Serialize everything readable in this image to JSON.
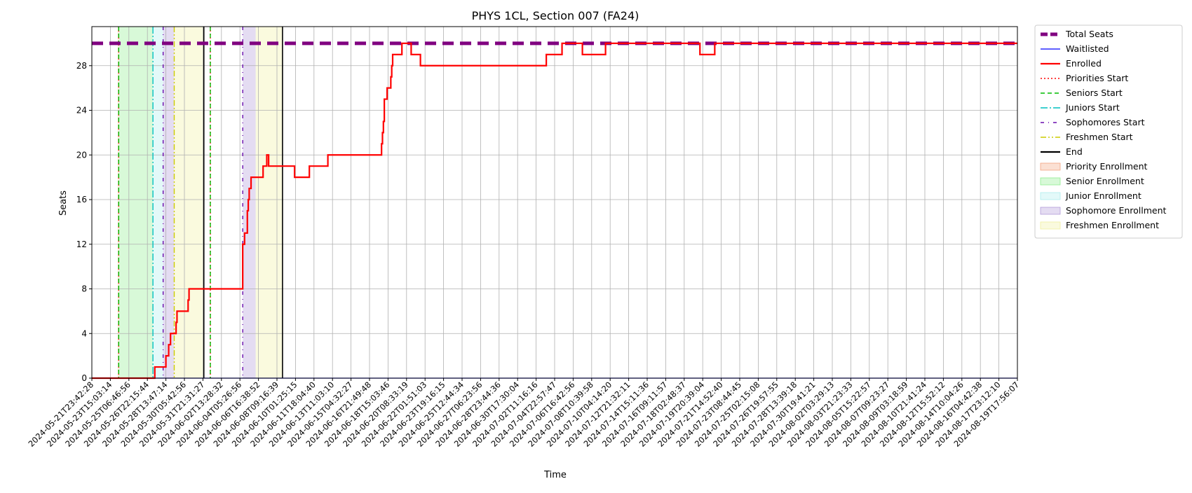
{
  "chart_data": {
    "type": "line",
    "title": "PHYS 1CL, Section 007 (FA24)",
    "xlabel": "Time",
    "ylabel": "Seats",
    "ylim": [
      0,
      31.5
    ],
    "yticks": [
      0,
      4,
      8,
      12,
      16,
      20,
      24,
      28
    ],
    "grid": true,
    "legend_position": "outside-right",
    "x_tick_labels": [
      "2024-05-21T23:42:28",
      "2024-05-23T15:03:14",
      "2024-05-25T06:46:56",
      "2024-05-26T22:15:44",
      "2024-05-28T13:47:14",
      "2024-05-30T05:42:56",
      "2024-05-31T21:31:27",
      "2024-06-02T13:28:32",
      "2024-06-04T05:26:56",
      "2024-06-06T16:38:52",
      "2024-06-08T09:16:39",
      "2024-06-10T01:25:15",
      "2024-06-11T18:04:40",
      "2024-06-13T11:03:10",
      "2024-06-15T04:32:27",
      "2024-06-16T21:49:48",
      "2024-06-18T15:03:46",
      "2024-06-20T08:33:19",
      "2024-06-22T01:51:03",
      "2024-06-23T19:16:15",
      "2024-06-25T12:44:34",
      "2024-06-27T06:23:56",
      "2024-06-28T23:44:36",
      "2024-06-30T17:30:04",
      "2024-07-02T11:16:16",
      "2024-07-04T22:57:47",
      "2024-07-06T16:42:56",
      "2024-07-08T10:39:58",
      "2024-07-10T04:14:20",
      "2024-07-12T21:32:11",
      "2024-07-14T15:11:36",
      "2024-07-16T09:11:57",
      "2024-07-18T02:48:37",
      "2024-07-19T20:39:04",
      "2024-07-21T14:52:40",
      "2024-07-23T08:44:45",
      "2024-07-25T02:15:08",
      "2024-07-26T19:57:55",
      "2024-07-28T13:39:18",
      "2024-07-30T19:41:21",
      "2024-08-02T03:29:13",
      "2024-08-03T21:23:33",
      "2024-08-05T15:22:57",
      "2024-08-07T09:23:27",
      "2024-08-09T03:18:59",
      "2024-08-10T21:41:24",
      "2024-08-12T15:52:12",
      "2024-08-14T10:04:26",
      "2024-08-16T04:42:38",
      "2024-08-17T23:12:10",
      "2024-08-19T17:56:07"
    ],
    "x_index_range": [
      0,
      100
    ],
    "series": [
      {
        "name": "Total Seats",
        "color": "#800080",
        "style": "dashed-thick",
        "points": [
          [
            0,
            30
          ],
          [
            100,
            30
          ]
        ]
      },
      {
        "name": "Waitlisted",
        "color": "#0000ff",
        "style": "solid-thin",
        "points": [
          [
            0,
            0
          ],
          [
            100,
            0
          ]
        ]
      },
      {
        "name": "Enrolled",
        "color": "#ff0000",
        "style": "solid",
        "steps": [
          [
            0,
            0
          ],
          [
            6.8,
            1
          ],
          [
            8,
            2
          ],
          [
            8.3,
            3
          ],
          [
            8.5,
            4
          ],
          [
            9.1,
            5
          ],
          [
            9.2,
            6
          ],
          [
            10.4,
            7
          ],
          [
            10.5,
            8
          ],
          [
            16.3,
            12
          ],
          [
            16.5,
            13
          ],
          [
            16.8,
            15
          ],
          [
            16.9,
            16
          ],
          [
            17,
            17
          ],
          [
            17.2,
            18
          ],
          [
            18.5,
            19
          ],
          [
            18.9,
            20
          ],
          [
            19.1,
            19
          ],
          [
            21.9,
            18
          ],
          [
            23.5,
            19
          ],
          [
            25.5,
            20
          ],
          [
            31.3,
            21
          ],
          [
            31.4,
            22
          ],
          [
            31.5,
            23
          ],
          [
            31.6,
            25
          ],
          [
            31.9,
            26
          ],
          [
            32.3,
            27
          ],
          [
            32.4,
            28
          ],
          [
            32.5,
            29
          ],
          [
            33.5,
            30
          ],
          [
            34.5,
            29
          ],
          [
            35.5,
            28
          ],
          [
            49.1,
            29
          ],
          [
            50.8,
            30
          ],
          [
            53,
            29
          ],
          [
            55.5,
            30
          ],
          [
            65.7,
            29
          ],
          [
            67.3,
            30
          ],
          [
            100,
            30
          ]
        ]
      }
    ],
    "vertical_markers": [
      {
        "name": "Priorities Start",
        "color": "#ff0000",
        "style": "dotted",
        "x": 2.9
      },
      {
        "name": "Priorities Start",
        "color": "#ff0000",
        "style": "dotted",
        "x": 12.8
      },
      {
        "name": "Seniors Start",
        "color": "#00bb00",
        "style": "dashed",
        "x": 2.9
      },
      {
        "name": "Seniors Start",
        "color": "#00bb00",
        "style": "dashed",
        "x": 12.8
      },
      {
        "name": "Juniors Start",
        "color": "#00bfbf",
        "style": "dashdot",
        "x": 6.6
      },
      {
        "name": "Sophomores Start",
        "color": "#6a0dad",
        "style": "dashdot-dense",
        "x": 7.7
      },
      {
        "name": "Sophomores Start",
        "color": "#6a0dad",
        "style": "dashdot-dense",
        "x": 16.3
      },
      {
        "name": "Freshmen Start",
        "color": "#cccc00",
        "style": "dashdotdot",
        "x": 8.9
      },
      {
        "name": "End",
        "color": "#000000",
        "style": "solid",
        "x": 12.1
      },
      {
        "name": "End",
        "color": "#000000",
        "style": "solid",
        "x": 20.6
      }
    ],
    "shaded_regions": [
      {
        "name": "Priority Enrollment",
        "color": "#f4a582",
        "from": 2.8,
        "to": 2.9
      },
      {
        "name": "Senior Enrollment",
        "color": "#90ee90",
        "from": 2.9,
        "to": 6.6
      },
      {
        "name": "Junior Enrollment",
        "color": "#afeeee",
        "from": 6.6,
        "to": 7.7
      },
      {
        "name": "Sophomore Enrollment",
        "color": "#b19cd9",
        "from": 7.7,
        "to": 8.9
      },
      {
        "name": "Freshmen Enrollment",
        "color": "#f0f0a0",
        "from": 8.9,
        "to": 12.1
      },
      {
        "name": "Sophomore Enrollment",
        "color": "#b19cd9",
        "from": 16.3,
        "to": 17.7
      },
      {
        "name": "Freshmen Enrollment",
        "color": "#f0f0a0",
        "from": 17.7,
        "to": 20.6
      }
    ],
    "legend": [
      {
        "label": "Total Seats",
        "kind": "line",
        "color": "#800080",
        "style": "dashed-thick"
      },
      {
        "label": "Waitlisted",
        "kind": "line",
        "color": "#0000ff",
        "style": "solid-thin"
      },
      {
        "label": "Enrolled",
        "kind": "line",
        "color": "#ff0000",
        "style": "solid"
      },
      {
        "label": "Priorities Start",
        "kind": "line",
        "color": "#ff0000",
        "style": "dotted"
      },
      {
        "label": "Seniors Start",
        "kind": "line",
        "color": "#00bb00",
        "style": "dashed"
      },
      {
        "label": "Juniors Start",
        "kind": "line",
        "color": "#00bfbf",
        "style": "dashdot"
      },
      {
        "label": "Sophomores Start",
        "kind": "line",
        "color": "#6a0dad",
        "style": "dashdot-dense"
      },
      {
        "label": "Freshmen Start",
        "kind": "line",
        "color": "#cccc00",
        "style": "dashdotdot"
      },
      {
        "label": "End",
        "kind": "line",
        "color": "#000000",
        "style": "solid"
      },
      {
        "label": "Priority Enrollment",
        "kind": "patch",
        "color": "#f4a582"
      },
      {
        "label": "Senior Enrollment",
        "kind": "patch",
        "color": "#90ee90"
      },
      {
        "label": "Junior Enrollment",
        "kind": "patch",
        "color": "#afeeee"
      },
      {
        "label": "Sophomore Enrollment",
        "kind": "patch",
        "color": "#b19cd9"
      },
      {
        "label": "Freshmen Enrollment",
        "kind": "patch",
        "color": "#f0f0a0"
      }
    ]
  }
}
